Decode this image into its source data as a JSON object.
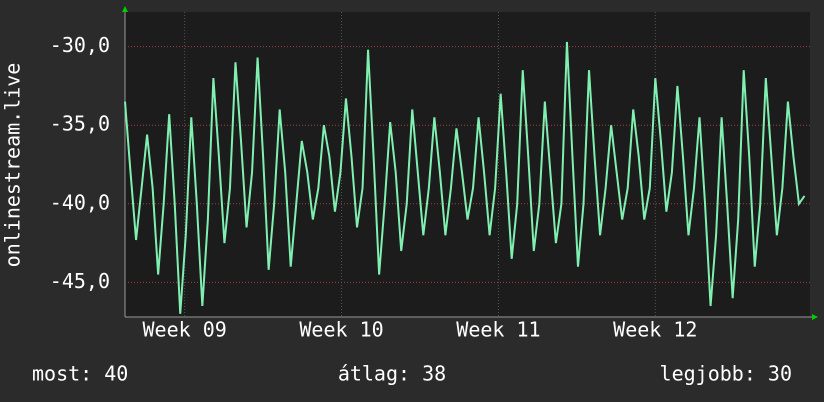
{
  "chart_data": {
    "type": "line",
    "ylabel": "onlinestream.live",
    "ylim": [
      -47.2,
      -27.8
    ],
    "yticks": [
      {
        "value": -30,
        "label": "-30,0"
      },
      {
        "value": -35,
        "label": "-35,0"
      },
      {
        "value": -40,
        "label": "-40,0"
      },
      {
        "value": -45,
        "label": "-45,0"
      }
    ],
    "xlim": [
      0,
      31
    ],
    "xticks": [
      {
        "value": 2.7,
        "label": "Week 09"
      },
      {
        "value": 9.8,
        "label": "Week 10"
      },
      {
        "value": 16.9,
        "label": "Week 11"
      },
      {
        "value": 24.0,
        "label": "Week 12"
      }
    ],
    "grid": true,
    "x": [
      0,
      0.25,
      0.5,
      0.75,
      1,
      1.25,
      1.5,
      1.75,
      2,
      2.25,
      2.5,
      2.75,
      3,
      3.25,
      3.5,
      3.75,
      4,
      4.25,
      4.5,
      4.75,
      5,
      5.25,
      5.5,
      5.75,
      6,
      6.25,
      6.5,
      6.75,
      7,
      7.25,
      7.5,
      7.75,
      8,
      8.25,
      8.5,
      8.75,
      9,
      9.25,
      9.5,
      9.75,
      10,
      10.25,
      10.5,
      10.75,
      11,
      11.25,
      11.5,
      11.75,
      12,
      12.25,
      12.5,
      12.75,
      13,
      13.25,
      13.5,
      13.75,
      14,
      14.25,
      14.5,
      14.75,
      15,
      15.25,
      15.5,
      15.75,
      16,
      16.25,
      16.5,
      16.75,
      17,
      17.25,
      17.5,
      17.75,
      18,
      18.25,
      18.5,
      18.75,
      19,
      19.25,
      19.5,
      19.75,
      20,
      20.25,
      20.5,
      20.75,
      21,
      21.25,
      21.5,
      21.75,
      22,
      22.25,
      22.5,
      22.75,
      23,
      23.25,
      23.5,
      23.75,
      24,
      24.25,
      24.5,
      24.75,
      25,
      25.25,
      25.5,
      25.75,
      26,
      26.25,
      26.5,
      26.75,
      27,
      27.25,
      27.5,
      27.75,
      28,
      28.25,
      28.5,
      28.75,
      29,
      29.25,
      29.5,
      29.75,
      30,
      30.25,
      30.5,
      30.75
    ],
    "series": [
      {
        "color": "#80f0b0",
        "values": [
          -33.5,
          -38,
          -42.3,
          -39,
          -35.6,
          -39,
          -44.5,
          -40,
          -34.3,
          -40,
          -47.0,
          -42,
          -34.5,
          -40,
          -46.5,
          -41,
          -32.0,
          -37,
          -42.5,
          -39,
          -31.0,
          -36,
          -41.5,
          -38,
          -30.7,
          -37,
          -44.2,
          -40,
          -34.0,
          -38,
          -44.0,
          -40,
          -36.0,
          -38,
          -41.0,
          -39,
          -35.0,
          -37,
          -40.5,
          -38,
          -33.3,
          -37,
          -41.5,
          -39,
          -30.2,
          -37,
          -44.5,
          -40,
          -34.8,
          -38,
          -43.0,
          -40,
          -34.0,
          -38,
          -42.0,
          -39,
          -34.5,
          -38,
          -42.0,
          -39,
          -35.2,
          -38,
          -41.0,
          -39,
          -34.5,
          -38,
          -42.0,
          -39,
          -33.0,
          -38,
          -43.5,
          -40,
          -31.5,
          -37,
          -43.0,
          -40,
          -33.5,
          -38,
          -42.5,
          -40,
          -29.7,
          -37,
          -44.0,
          -40,
          -31.5,
          -37,
          -42.0,
          -39,
          -35.0,
          -38,
          -41.0,
          -39,
          -34.0,
          -37,
          -41.0,
          -39,
          -32.0,
          -36,
          -40.5,
          -38,
          -32.5,
          -37,
          -42.0,
          -39,
          -34.5,
          -40,
          -46.5,
          -42,
          -34.5,
          -40,
          -46.0,
          -41,
          -31.5,
          -37,
          -44.0,
          -40,
          -32.0,
          -37,
          -42.0,
          -39,
          -33.5,
          -37,
          -40.0,
          -39.5
        ]
      }
    ],
    "footer": {
      "current": "most: 40",
      "average": "átlag: 38",
      "best": "legjobb: 30"
    }
  }
}
